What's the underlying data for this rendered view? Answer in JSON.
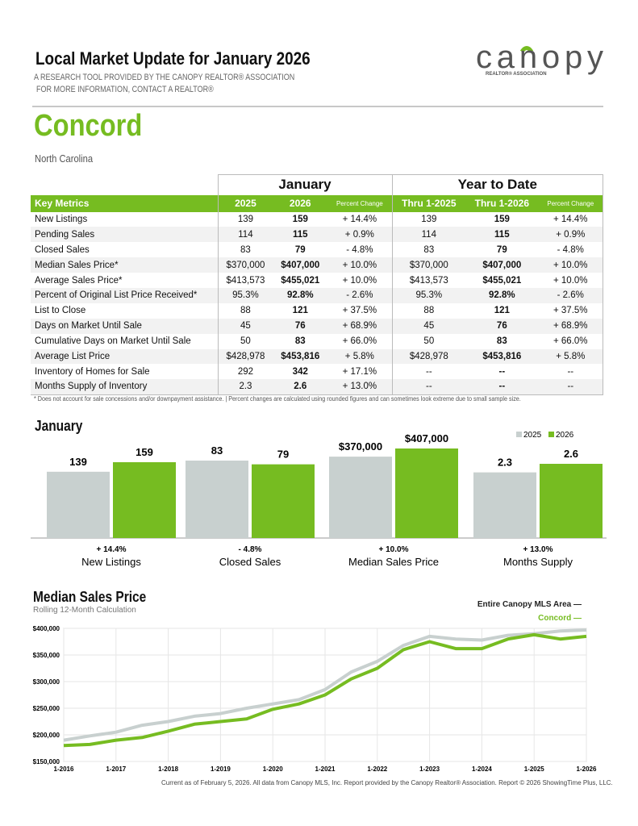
{
  "header": {
    "title": "Local Market Update for January 2026",
    "subtitle1": "A RESEARCH TOOL PROVIDED BY THE CANOPY REALTOR® ASSOCIATION",
    "subtitle2": "FOR MORE INFORMATION, CONTACT A REALTOR®",
    "logo_text": "canopy",
    "logo_sub": "REALTOR® ASSOCIATION"
  },
  "location": {
    "city": "Concord",
    "state": "North Carolina"
  },
  "colors": {
    "accent": "#76bc21",
    "gray": "#c8d0cf"
  },
  "table": {
    "group_headers": [
      "January",
      "Year to Date"
    ],
    "columns": [
      "Key Metrics",
      "2025",
      "2026",
      "Percent Change",
      "Thru 1-2025",
      "Thru 1-2026",
      "Percent Change"
    ],
    "rows": [
      [
        "New Listings",
        "139",
        "159",
        "+ 14.4%",
        "139",
        "159",
        "+ 14.4%"
      ],
      [
        "Pending Sales",
        "114",
        "115",
        "+ 0.9%",
        "114",
        "115",
        "+ 0.9%"
      ],
      [
        "Closed Sales",
        "83",
        "79",
        "- 4.8%",
        "83",
        "79",
        "- 4.8%"
      ],
      [
        "Median Sales Price*",
        "$370,000",
        "$407,000",
        "+ 10.0%",
        "$370,000",
        "$407,000",
        "+ 10.0%"
      ],
      [
        "Average Sales Price*",
        "$413,573",
        "$455,021",
        "+ 10.0%",
        "$413,573",
        "$455,021",
        "+ 10.0%"
      ],
      [
        "Percent of Original List Price Received*",
        "95.3%",
        "92.8%",
        "- 2.6%",
        "95.3%",
        "92.8%",
        "- 2.6%"
      ],
      [
        "List to Close",
        "88",
        "121",
        "+ 37.5%",
        "88",
        "121",
        "+ 37.5%"
      ],
      [
        "Days on Market Until Sale",
        "45",
        "76",
        "+ 68.9%",
        "45",
        "76",
        "+ 68.9%"
      ],
      [
        "Cumulative Days on Market Until Sale",
        "50",
        "83",
        "+ 66.0%",
        "50",
        "83",
        "+ 66.0%"
      ],
      [
        "Average List Price",
        "$428,978",
        "$453,816",
        "+ 5.8%",
        "$428,978",
        "$453,816",
        "+ 5.8%"
      ],
      [
        "Inventory of Homes for Sale",
        "292",
        "342",
        "+ 17.1%",
        "--",
        "--",
        "--"
      ],
      [
        "Months Supply of Inventory",
        "2.3",
        "2.6",
        "+ 13.0%",
        "--",
        "--",
        "--"
      ]
    ],
    "note": "* Does not account for sale concessions and/or downpayment assistance.  |  Percent changes are calculated using rounded figures and can sometimes look extreme due to small sample size."
  },
  "chart_data": [
    {
      "type": "bar",
      "title": "January",
      "legend": [
        "2025",
        "2026"
      ],
      "legend_placement": "top-right",
      "groups": [
        {
          "label": "New Listings",
          "change": "+ 14.4%",
          "values": [
            139,
            159
          ],
          "labels": [
            "139",
            "159"
          ]
        },
        {
          "label": "Closed Sales",
          "change": "- 4.8%",
          "values": [
            83,
            79
          ],
          "labels": [
            "83",
            "79"
          ]
        },
        {
          "label": "Median Sales Price",
          "change": "+ 10.0%",
          "values": [
            370000,
            407000
          ],
          "labels": [
            "$370,000",
            "$407,000"
          ]
        },
        {
          "label": "Months Supply",
          "change": "+ 13.0%",
          "values": [
            2.3,
            2.6
          ],
          "labels": [
            "2.3",
            "2.6"
          ]
        }
      ]
    },
    {
      "type": "line",
      "title": "Median Sales Price",
      "subtitle": "Rolling 12-Month Calculation",
      "ylim": [
        150000,
        400000
      ],
      "yticks": [
        "$150,000",
        "$200,000",
        "$250,000",
        "$300,000",
        "$350,000",
        "$400,000"
      ],
      "xticks": [
        "1-2016",
        "1-2017",
        "1-2018",
        "1-2019",
        "1-2020",
        "1-2021",
        "1-2022",
        "1-2023",
        "1-2024",
        "1-2025",
        "1-2026"
      ],
      "x": [
        "1-2016",
        "7-2016",
        "1-2017",
        "7-2017",
        "1-2018",
        "7-2018",
        "1-2019",
        "7-2019",
        "1-2020",
        "7-2020",
        "1-2021",
        "7-2021",
        "1-2022",
        "7-2022",
        "1-2023",
        "7-2023",
        "1-2024",
        "7-2024",
        "1-2025",
        "7-2025",
        "1-2026"
      ],
      "series": [
        {
          "name": "Entire Canopy MLS Area",
          "color": "#c8d0cf",
          "values": [
            190000,
            198000,
            205000,
            218000,
            225000,
            235000,
            240000,
            250000,
            258000,
            266000,
            285000,
            318000,
            338000,
            368000,
            385000,
            380000,
            378000,
            387000,
            390000,
            395000,
            397000
          ]
        },
        {
          "name": "Concord",
          "color": "#76bc21",
          "values": [
            180000,
            182000,
            190000,
            195000,
            207000,
            220000,
            225000,
            230000,
            248000,
            258000,
            275000,
            305000,
            325000,
            360000,
            375000,
            362000,
            362000,
            380000,
            388000,
            380000,
            385000
          ]
        }
      ]
    }
  ],
  "footer": "Current as of February 5, 2026. All data from Canopy MLS, Inc. Report provided by the Canopy Realtor® Association. Report © 2026 ShowingTime Plus, LLC."
}
